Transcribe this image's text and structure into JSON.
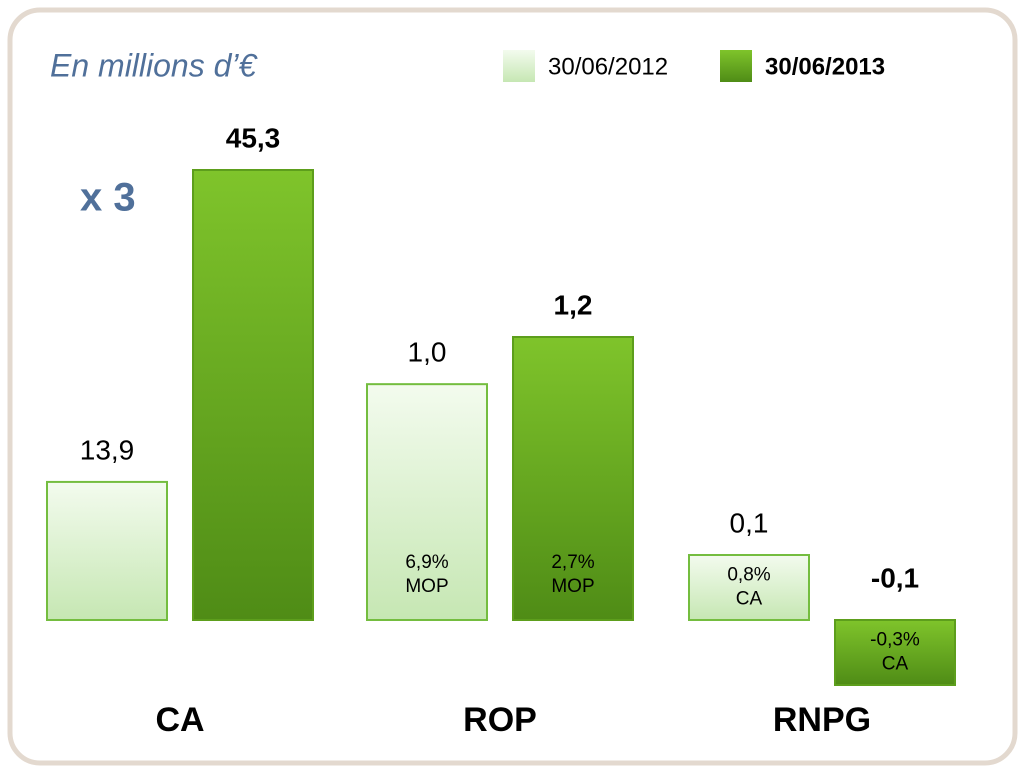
{
  "chart_data": {
    "type": "bar",
    "title": "En millions d’€",
    "annotation": "x 3",
    "categories": [
      "CA",
      "ROP",
      "RNPG"
    ],
    "legend": "top-right",
    "series": [
      {
        "name": "30/06/2012",
        "color": "#d6efc8",
        "values": [
          13.9,
          1.0,
          0.1
        ],
        "value_labels": [
          "13,9",
          "1,0",
          "0,1"
        ],
        "notes": [
          null,
          [
            "6,9%",
            "MOP"
          ],
          [
            "0,8%",
            "CA"
          ]
        ]
      },
      {
        "name": "30/06/2013",
        "color": "#6cae21",
        "values": [
          45.3,
          1.2,
          -0.1
        ],
        "value_labels": [
          "45,3",
          "1,2",
          "-0,1"
        ],
        "notes": [
          null,
          [
            "2,7%",
            "MOP"
          ],
          [
            "-0,3%",
            "CA"
          ]
        ]
      }
    ]
  }
}
